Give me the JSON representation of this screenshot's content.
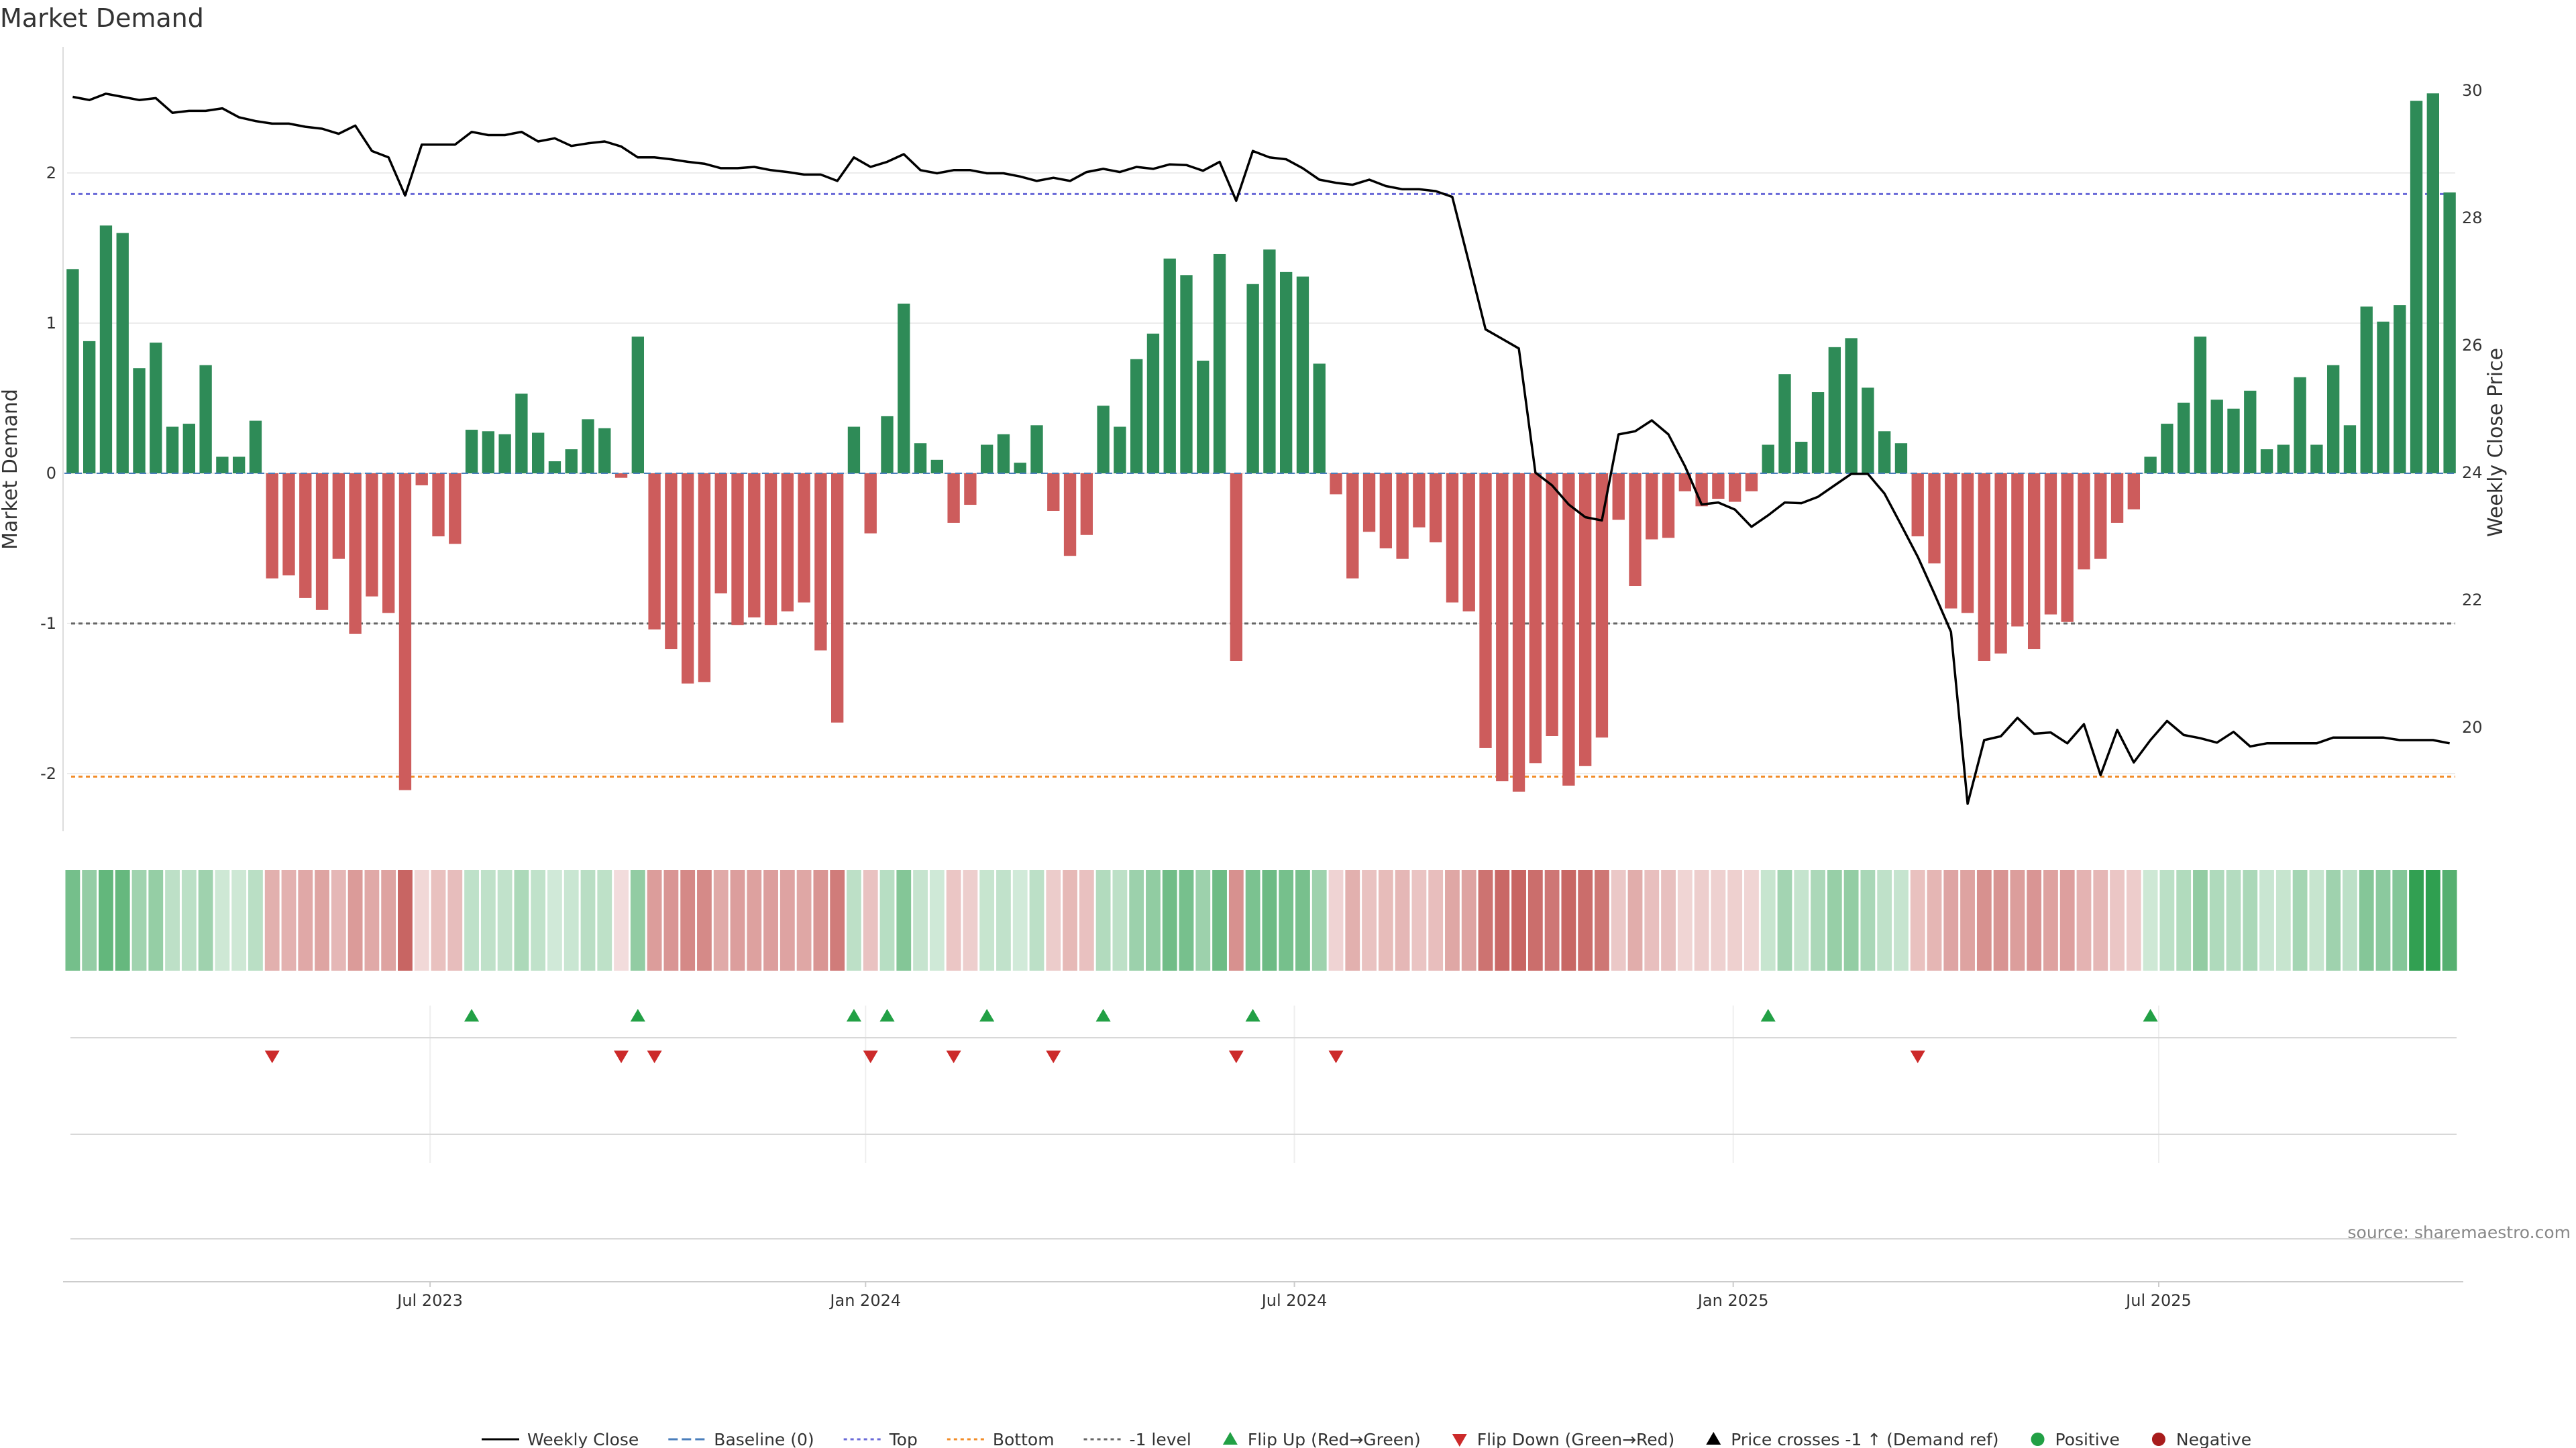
{
  "chart_data": {
    "type": "bar",
    "title": "Market Demand",
    "ylabel_left": "Market Demand",
    "ylabel_right": "Weekly Close Price",
    "y_left_ticks": [
      "2",
      "1",
      "0",
      "-1",
      "-2"
    ],
    "y_right_ticks": [
      "30",
      "28",
      "26",
      "24",
      "22",
      "20"
    ],
    "ylim_left": [
      -2.38,
      2.85
    ],
    "ylim_right": [
      18.6,
      30.6
    ],
    "x_tick_labels": [
      "Jul 2023",
      "Jan 2024",
      "Jul 2024",
      "Jan 2025",
      "Jul 2025"
    ],
    "reference_lines": {
      "top": 1.86,
      "bottom": -2.02,
      "minus_one": -1.0,
      "baseline": 0
    },
    "grid": "horizontal",
    "legend_position": "bottom",
    "colors": {
      "positive": "#2e8b57",
      "negative": "#cd5c5c",
      "price": "#000000",
      "top_line": "#6a6ad8",
      "bottom_line": "#f28c28",
      "minus_one_line": "#666666",
      "flip_up": "#22a045",
      "flip_down": "#cc2a2a"
    },
    "series": [
      {
        "name": "Market Demand",
        "values": [
          1.36,
          0.88,
          1.65,
          1.6,
          0.7,
          0.87,
          0.31,
          0.33,
          0.72,
          0.11,
          0.11,
          0.35,
          -0.7,
          -0.68,
          -0.83,
          -0.91,
          -0.57,
          -1.07,
          -0.82,
          -0.93,
          -2.11,
          -0.08,
          -0.42,
          -0.47,
          0.29,
          0.28,
          0.26,
          0.53,
          0.27,
          0.08,
          0.16,
          0.36,
          0.3,
          -0.03,
          0.91,
          -1.04,
          -1.17,
          -1.4,
          -1.39,
          -0.8,
          -1.01,
          -0.96,
          -1.01,
          -0.92,
          -0.86,
          -1.18,
          -1.66,
          0.31,
          -0.4,
          0.38,
          1.13,
          0.2,
          0.09,
          -0.33,
          -0.21,
          0.19,
          0.26,
          0.07,
          0.32,
          -0.25,
          -0.55,
          -0.41,
          0.45,
          0.31,
          0.76,
          0.93,
          1.43,
          1.32,
          0.75,
          1.46,
          -1.25,
          1.26,
          1.49,
          1.34,
          1.31,
          0.73,
          -0.14,
          -0.7,
          -0.39,
          -0.5,
          -0.57,
          -0.36,
          -0.46,
          -0.86,
          -0.92,
          -1.83,
          -2.05,
          -2.12,
          -1.93,
          -1.75,
          -2.08,
          -1.95,
          -1.76,
          -0.31,
          -0.75,
          -0.44,
          -0.43,
          -0.12,
          -0.22,
          -0.17,
          -0.19,
          -0.12,
          0.19,
          0.66,
          0.21,
          0.54,
          0.84,
          0.9,
          0.57,
          0.28,
          0.2,
          -0.42,
          -0.6,
          -0.9,
          -0.93,
          -1.25,
          -1.2,
          -1.02,
          -1.17,
          -0.94,
          -0.99,
          -0.64,
          -0.57,
          -0.33,
          -0.24,
          0.11,
          0.33,
          0.47,
          0.91,
          0.49,
          0.43,
          0.55,
          0.16,
          0.19,
          0.64,
          0.19,
          0.72,
          0.32,
          1.11,
          1.01,
          1.12,
          2.48,
          2.53,
          1.87
        ]
      },
      {
        "name": "Weekly Close",
        "values": [
          29.9,
          29.85,
          29.95,
          29.9,
          29.85,
          29.88,
          29.65,
          29.68,
          29.68,
          29.72,
          29.58,
          29.52,
          29.48,
          29.48,
          29.43,
          29.4,
          29.32,
          29.45,
          29.05,
          28.95,
          28.35,
          29.15,
          29.15,
          29.15,
          29.35,
          29.3,
          29.3,
          29.35,
          29.2,
          29.25,
          29.13,
          29.17,
          29.2,
          29.12,
          28.95,
          28.95,
          28.92,
          28.88,
          28.85,
          28.78,
          28.78,
          28.8,
          28.75,
          28.72,
          28.68,
          28.68,
          28.58,
          28.95,
          28.8,
          28.88,
          29.0,
          28.75,
          28.7,
          28.75,
          28.75,
          28.7,
          28.7,
          28.65,
          28.58,
          28.63,
          28.58,
          28.72,
          28.77,
          28.72,
          28.8,
          28.77,
          28.84,
          28.83,
          28.74,
          28.88,
          28.27,
          29.05,
          28.95,
          28.92,
          28.78,
          28.6,
          28.55,
          28.52,
          28.6,
          28.5,
          28.45,
          28.45,
          28.42,
          28.33,
          27.3,
          26.25,
          26.1,
          25.95,
          24.0,
          23.8,
          23.5,
          23.3,
          23.25,
          24.6,
          24.65,
          24.82,
          24.6,
          24.1,
          23.5,
          23.53,
          23.42,
          23.15,
          23.33,
          23.53,
          23.52,
          23.62,
          23.8,
          23.98,
          23.98,
          23.67,
          23.18,
          22.68,
          22.1,
          21.5,
          18.8,
          19.8,
          19.86,
          20.15,
          19.9,
          19.92,
          19.75,
          20.05,
          19.25,
          19.96,
          19.45,
          19.8,
          20.1,
          19.88,
          19.83,
          19.76,
          19.93,
          19.7,
          19.75,
          19.75,
          19.75,
          19.75,
          19.84,
          19.84,
          19.84,
          19.84,
          19.8,
          19.8,
          19.8,
          19.75
        ]
      }
    ],
    "flip_up_indices": [
      24,
      34,
      47,
      49,
      55,
      62,
      71,
      102,
      125
    ],
    "flip_down_indices": [
      12,
      33,
      35,
      48,
      53,
      59,
      70,
      76,
      111
    ],
    "legend": [
      {
        "label": "Weekly Close",
        "kind": "line-solid",
        "color": "#000000"
      },
      {
        "label": "Baseline (0)",
        "kind": "line-dashed",
        "color": "#4a7ebb"
      },
      {
        "label": "Top",
        "kind": "line-dotted",
        "color": "#6a6ad8"
      },
      {
        "label": "Bottom",
        "kind": "line-dotted",
        "color": "#f28c28"
      },
      {
        "label": "-1 level",
        "kind": "line-dotted",
        "color": "#666666"
      },
      {
        "label": "Flip Up (Red→Green)",
        "kind": "tri-up",
        "color": "#22a045"
      },
      {
        "label": "Flip Down (Green→Red)",
        "kind": "tri-down",
        "color": "#cc2a2a"
      },
      {
        "label": "Price crosses -1 ↑ (Demand ref)",
        "kind": "tri-up",
        "color": "#000000"
      },
      {
        "label": "Positive",
        "kind": "dot",
        "color": "#22a045"
      },
      {
        "label": "Negative",
        "kind": "dot",
        "color": "#a81c1c"
      }
    ],
    "source": "source: sharemaestro.com"
  }
}
